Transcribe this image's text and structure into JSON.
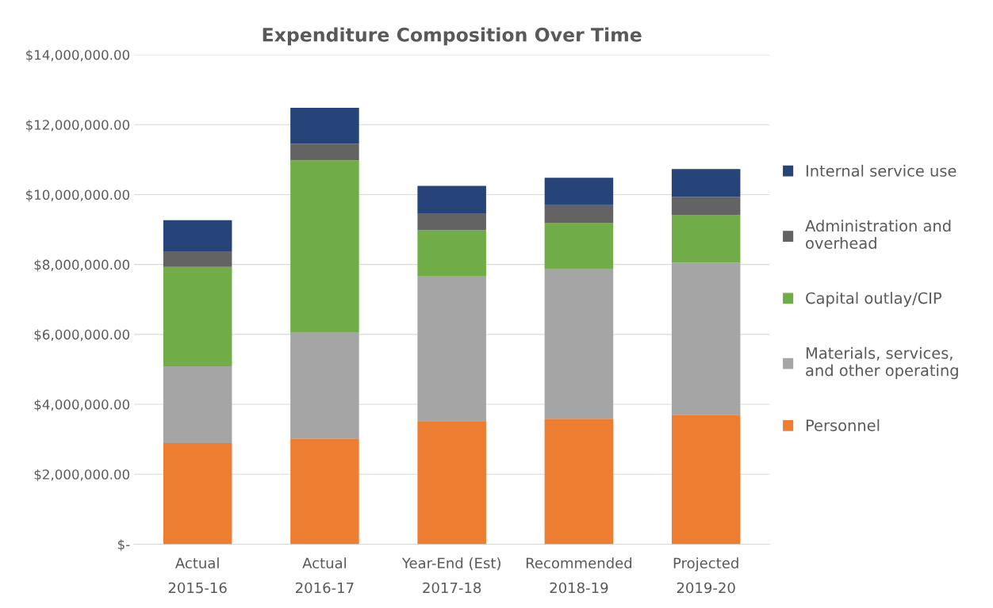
{
  "chart_data": {
    "type": "bar",
    "title": "Expenditure Composition Over Time",
    "stacked": true,
    "categories": [
      "Actual\n2015-16",
      "Actual\n2016-17",
      "Year-End (Est)\n2017-18",
      "Recommended\n2018-19",
      "Projected\n2019-20"
    ],
    "series": [
      {
        "name": "Personnel",
        "color": "#ed7d31",
        "values": [
          2890000,
          3020000,
          3500000,
          3590000,
          3700000
        ]
      },
      {
        "name": "Materials, services,\nand other operating",
        "color": "#a5a5a5",
        "values": [
          2200000,
          3030000,
          4160000,
          4270000,
          4350000
        ]
      },
      {
        "name": "Capital outlay/CIP",
        "color": "#70ad47",
        "values": [
          2840000,
          4930000,
          1320000,
          1320000,
          1360000
        ]
      },
      {
        "name": "Administration and\noverhead",
        "color": "#636363",
        "values": [
          430000,
          470000,
          470000,
          520000,
          520000
        ]
      },
      {
        "name": "Internal service use",
        "color": "#264478",
        "values": [
          910000,
          1030000,
          800000,
          780000,
          800000
        ]
      }
    ],
    "ylim": [
      0,
      14000000
    ],
    "yticks": [
      {
        "value": 0,
        "label": "$-"
      },
      {
        "value": 2000000,
        "label": "$2,000,000.00"
      },
      {
        "value": 4000000,
        "label": "$4,000,000.00"
      },
      {
        "value": 6000000,
        "label": "$6,000,000.00"
      },
      {
        "value": 8000000,
        "label": "$8,000,000.00"
      },
      {
        "value": 10000000,
        "label": "$10,000,000.00"
      },
      {
        "value": 12000000,
        "label": "$12,000,000.00"
      },
      {
        "value": 14000000,
        "label": "$14,000,000.00"
      }
    ],
    "grid": "y",
    "legend": "right"
  }
}
